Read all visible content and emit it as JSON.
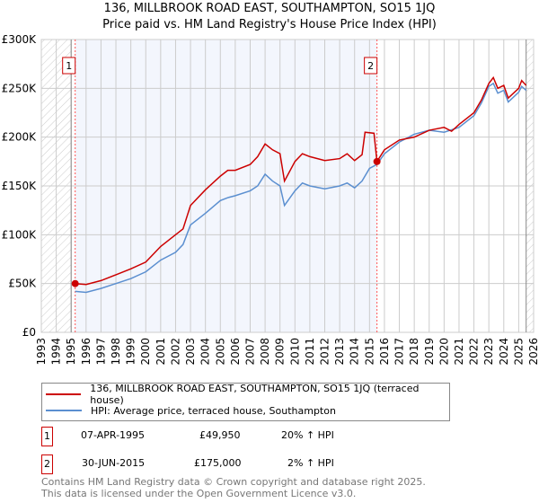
{
  "chart_data": {
    "type": "line",
    "title": "136, MILLBROOK ROAD EAST, SOUTHAMPTON, SO15 1JQ",
    "subtitle": "Price paid vs. HM Land Registry's House Price Index (HPI)",
    "xlim": [
      1993,
      2026
    ],
    "ylim": [
      0,
      300000
    ],
    "x_ticks": [
      "1993",
      "1994",
      "1995",
      "1996",
      "1997",
      "1998",
      "1999",
      "2000",
      "2001",
      "2002",
      "2003",
      "2004",
      "2005",
      "2006",
      "2007",
      "2008",
      "2009",
      "2010",
      "2011",
      "2012",
      "2013",
      "2014",
      "2015",
      "2016",
      "2017",
      "2018",
      "2019",
      "2020",
      "2021",
      "2022",
      "2023",
      "2024",
      "2025",
      "2026"
    ],
    "y_ticks": [
      {
        "v": 0,
        "label": "£0"
      },
      {
        "v": 50000,
        "label": "£50K"
      },
      {
        "v": 100000,
        "label": "£100K"
      },
      {
        "v": 150000,
        "label": "£150K"
      },
      {
        "v": 200000,
        "label": "£200K"
      },
      {
        "v": 250000,
        "label": "£250K"
      },
      {
        "v": 300000,
        "label": "£300K"
      }
    ],
    "grid": true,
    "hatched_before": 1995,
    "hatched_after": 2025.5,
    "shaded_range": [
      1995.27,
      2015.5
    ],
    "series": [
      {
        "name": "136, MILLBROOK ROAD EAST, SOUTHAMPTON, SO15 1JQ (terraced house)",
        "color": "#cc0000",
        "x": [
          1995.27,
          1996,
          1997,
          1998,
          1999,
          2000,
          2001,
          2002,
          2002.5,
          2003,
          2004,
          2005,
          2005.5,
          2006,
          2007,
          2007.5,
          2008,
          2008.5,
          2009,
          2009.3,
          2010,
          2010.5,
          2011,
          2012,
          2013,
          2013.5,
          2014,
          2014.5,
          2014.7,
          2015.3,
          2015.5,
          2016,
          2017,
          2018,
          2019,
          2020,
          2020.5,
          2021,
          2022,
          2022.5,
          2023,
          2023.3,
          2023.6,
          2024,
          2024.3,
          2025,
          2025.2,
          2025.5
        ],
        "y": [
          49950,
          49000,
          53000,
          59000,
          65000,
          72000,
          88000,
          100000,
          106000,
          130000,
          146000,
          160000,
          166000,
          166000,
          172000,
          180000,
          193000,
          187000,
          183000,
          155000,
          175000,
          183000,
          180000,
          176000,
          178000,
          183000,
          176000,
          182000,
          205000,
          204000,
          175000,
          187000,
          197000,
          200000,
          207000,
          210000,
          206000,
          213000,
          225000,
          238000,
          255000,
          261000,
          250000,
          253000,
          240000,
          250000,
          258000,
          253000
        ]
      },
      {
        "name": "HPI: Average price, terraced house, Southampton",
        "color": "#5b8fd0",
        "x": [
          1995.27,
          1996,
          1997,
          1998,
          1999,
          2000,
          2001,
          2002,
          2002.5,
          2003,
          2004,
          2005,
          2005.5,
          2006,
          2007,
          2007.5,
          2008,
          2008.5,
          2009,
          2009.3,
          2010,
          2010.5,
          2011,
          2012,
          2013,
          2013.5,
          2014,
          2014.5,
          2015,
          2015.5,
          2016,
          2017,
          2018,
          2019,
          2020,
          2021,
          2022,
          2022.5,
          2023,
          2023.3,
          2023.6,
          2024,
          2024.3,
          2025,
          2025.2,
          2025.5
        ],
        "y": [
          42000,
          41000,
          45000,
          50000,
          55000,
          62000,
          74000,
          82000,
          90000,
          110000,
          122000,
          135000,
          138000,
          140000,
          145000,
          150000,
          162000,
          155000,
          150000,
          130000,
          145000,
          153000,
          150000,
          147000,
          150000,
          153000,
          148000,
          155000,
          168000,
          172000,
          183000,
          195000,
          203000,
          207000,
          205000,
          210000,
          222000,
          235000,
          252000,
          255000,
          245000,
          248000,
          236000,
          246000,
          252000,
          248000
        ]
      }
    ],
    "sales": [
      {
        "label": "1",
        "x": 1995.27,
        "y": 49950
      },
      {
        "label": "2",
        "x": 2015.5,
        "y": 175000
      }
    ]
  },
  "legend": {
    "red": "136, MILLBROOK ROAD EAST, SOUTHAMPTON, SO15 1JQ (terraced house)",
    "blue": "HPI: Average price, terraced house, Southampton"
  },
  "transactions": [
    {
      "num": "1",
      "date": "07-APR-1995",
      "price": "£49,950",
      "hpi": "20% ↑ HPI"
    },
    {
      "num": "2",
      "date": "30-JUN-2015",
      "price": "£175,000",
      "hpi": "2% ↑ HPI"
    }
  ],
  "footer": [
    "Contains HM Land Registry data © Crown copyright and database right 2025.",
    "This data is licensed under the Open Government Licence v3.0."
  ]
}
